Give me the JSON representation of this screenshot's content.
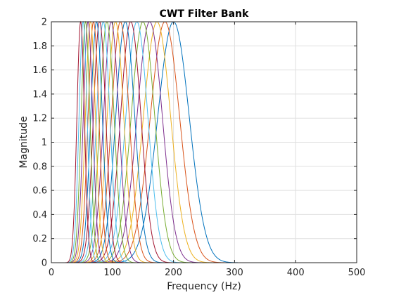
{
  "chart_data": {
    "type": "line",
    "title": "CWT Filter Bank",
    "xlabel": "Frequency (Hz)",
    "ylabel": "Magnitude",
    "xlim": [
      0,
      500
    ],
    "ylim": [
      0,
      2
    ],
    "xticks": [
      0,
      100,
      200,
      300,
      400,
      500
    ],
    "xtick_labels": [
      "0",
      "100",
      "200",
      "300",
      "400",
      "500"
    ],
    "yticks": [
      0,
      0.2,
      0.4,
      0.6,
      0.8,
      1,
      1.2,
      1.4,
      1.6,
      1.8,
      2
    ],
    "ytick_labels": [
      "0",
      "0.2",
      "0.4",
      "0.6",
      "0.8",
      "1",
      "1.2",
      "1.4",
      "1.6",
      "1.8",
      "2"
    ],
    "grid": true,
    "legend": "none",
    "series_description": "Bank of Morse-wavelet filters; each series is a bump with peak magnitude 2 at center frequency",
    "series": [
      {
        "peak_frequency": 200,
        "peak_magnitude": 2,
        "color": "#0072bd"
      },
      {
        "peak_frequency": 186,
        "peak_magnitude": 2,
        "color": "#d95319"
      },
      {
        "peak_frequency": 173,
        "peak_magnitude": 2,
        "color": "#edb120"
      },
      {
        "peak_frequency": 161,
        "peak_magnitude": 2,
        "color": "#7e2f8e"
      },
      {
        "peak_frequency": 150,
        "peak_magnitude": 2,
        "color": "#77ac30"
      },
      {
        "peak_frequency": 140,
        "peak_magnitude": 2,
        "color": "#4dbeee"
      },
      {
        "peak_frequency": 130,
        "peak_magnitude": 2,
        "color": "#a2142f"
      },
      {
        "peak_frequency": 121,
        "peak_magnitude": 2,
        "color": "#0072bd"
      },
      {
        "peak_frequency": 113,
        "peak_magnitude": 2,
        "color": "#d95319"
      },
      {
        "peak_frequency": 105,
        "peak_magnitude": 2,
        "color": "#edb120"
      },
      {
        "peak_frequency": 98,
        "peak_magnitude": 2,
        "color": "#7e2f8e"
      },
      {
        "peak_frequency": 91,
        "peak_magnitude": 2,
        "color": "#77ac30"
      },
      {
        "peak_frequency": 85,
        "peak_magnitude": 2,
        "color": "#4dbeee"
      },
      {
        "peak_frequency": 79,
        "peak_magnitude": 2,
        "color": "#a2142f"
      },
      {
        "peak_frequency": 74,
        "peak_magnitude": 2,
        "color": "#0072bd"
      },
      {
        "peak_frequency": 69,
        "peak_magnitude": 2,
        "color": "#d95319"
      },
      {
        "peak_frequency": 64,
        "peak_magnitude": 2,
        "color": "#edb120"
      },
      {
        "peak_frequency": 60,
        "peak_magnitude": 2,
        "color": "#7e2f8e"
      },
      {
        "peak_frequency": 56,
        "peak_magnitude": 2,
        "color": "#77ac30"
      },
      {
        "peak_frequency": 52,
        "peak_magnitude": 2,
        "color": "#4dbeee"
      },
      {
        "peak_frequency": 48,
        "peak_magnitude": 2,
        "color": "#a2142f"
      }
    ]
  }
}
